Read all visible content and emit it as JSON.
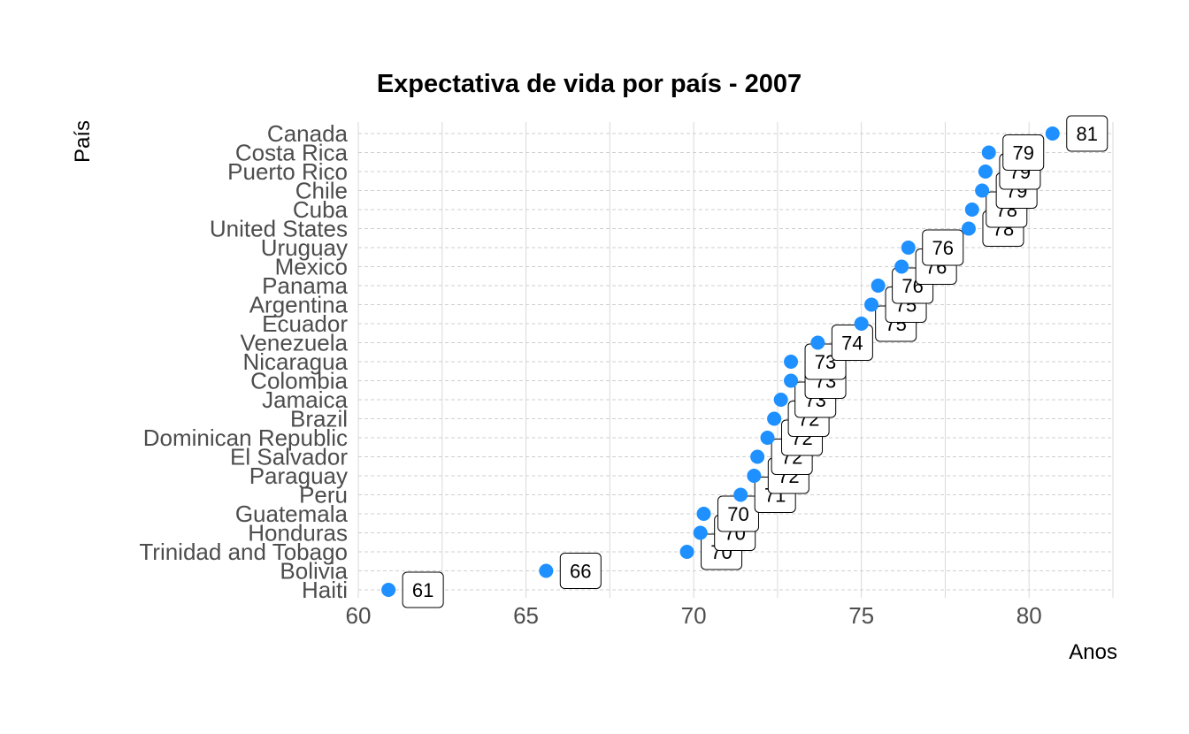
{
  "chart_data": {
    "type": "scatter",
    "title": "Expectativa de vida por país - 2007",
    "xlabel": "Anos",
    "ylabel": "País",
    "xlim": [
      60,
      82.5
    ],
    "xticks": [
      60,
      65,
      70,
      75,
      80
    ],
    "grid": true,
    "point_color": "#1E90FF",
    "categories": [
      "Canada",
      "Costa Rica",
      "Puerto Rico",
      "Chile",
      "Cuba",
      "United States",
      "Uruguay",
      "Mexico",
      "Panama",
      "Argentina",
      "Ecuador",
      "Venezuela",
      "Nicaragua",
      "Colombia",
      "Jamaica",
      "Brazil",
      "Dominican Republic",
      "El Salvador",
      "Paraguay",
      "Peru",
      "Guatemala",
      "Honduras",
      "Trinidad and Tobago",
      "Bolivia",
      "Haiti"
    ],
    "values": [
      80.7,
      78.8,
      78.7,
      78.6,
      78.3,
      78.2,
      76.4,
      76.2,
      75.5,
      75.3,
      75.0,
      73.7,
      72.9,
      72.9,
      72.6,
      72.4,
      72.2,
      71.9,
      71.8,
      71.4,
      70.3,
      70.2,
      69.8,
      65.6,
      60.9
    ],
    "labels": [
      "81",
      "79",
      "79",
      "79",
      "78",
      "78",
      "76",
      "76",
      "76",
      "75",
      "75",
      "74",
      "73",
      "73",
      "73",
      "72",
      "72",
      "72",
      "72",
      "71",
      "70",
      "70",
      "70",
      "66",
      "61"
    ]
  }
}
